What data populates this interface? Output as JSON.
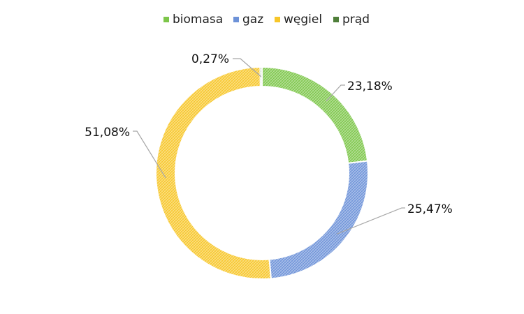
{
  "chart_data": {
    "type": "pie",
    "variant": "donut",
    "title": "",
    "legend_position": "top",
    "categories": [
      "biomasa",
      "gaz",
      "węgiel",
      "prąd"
    ],
    "values": [
      23.18,
      25.47,
      51.08,
      0.27
    ],
    "value_labels": [
      "23,18%",
      "25,47%",
      "51,08%",
      "0,27%"
    ],
    "colors": [
      "#7dc64a",
      "#6d92d8",
      "#f7c629",
      "#4f7f3a"
    ],
    "start": "12 o'clock, clockwise",
    "pattern": "crosshatch"
  }
}
